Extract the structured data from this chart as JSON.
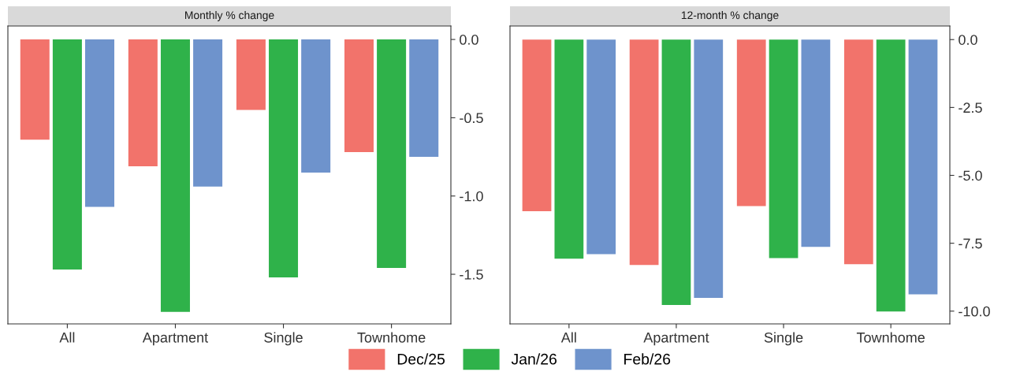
{
  "chart_data": [
    {
      "type": "bar",
      "title": "Monthly % change",
      "categories": [
        "All",
        "Apartment",
        "Single",
        "Townhome"
      ],
      "ylim": [
        -1.817,
        0.086
      ],
      "yticks": [
        {
          "value": 0,
          "label": "0.0"
        },
        -0.5,
        {
          "value": -1,
          "label": "-1.0"
        },
        -1.5
      ],
      "grid": false,
      "legend": "bottom",
      "series": [
        {
          "name": "Dec/25",
          "color": "#f2736b",
          "values": [
            -0.64,
            -0.81,
            -0.45,
            -0.72
          ]
        },
        {
          "name": "Jan/26",
          "color": "#2fb24a",
          "values": [
            -1.47,
            -1.74,
            -1.52,
            -1.46
          ]
        },
        {
          "name": "Feb/26",
          "color": "#6e93cc",
          "values": [
            -1.07,
            -0.94,
            -0.85,
            -0.75
          ]
        }
      ]
    },
    {
      "type": "bar",
      "title": "12-month % change",
      "categories": [
        "All",
        "Apartment",
        "Single",
        "Townhome"
      ],
      "ylim": [
        -10.47,
        0.5
      ],
      "yticks": [
        {
          "value": 0,
          "label": "0.0"
        },
        -2.5,
        {
          "value": -5,
          "label": "-5.0"
        },
        -7.5,
        {
          "value": -10,
          "label": "-10.0"
        }
      ],
      "grid": false,
      "series": [
        {
          "color": "#f2736b",
          "values": [
            -6.32,
            -8.3,
            -6.13,
            -8.27
          ]
        },
        {
          "color": "#2fb24a",
          "values": [
            -8.07,
            -9.77,
            -8.05,
            -10.01
          ]
        },
        {
          "color": "#6e93cc",
          "values": [
            -7.9,
            -9.51,
            -7.63,
            -9.38
          ]
        }
      ]
    }
  ]
}
